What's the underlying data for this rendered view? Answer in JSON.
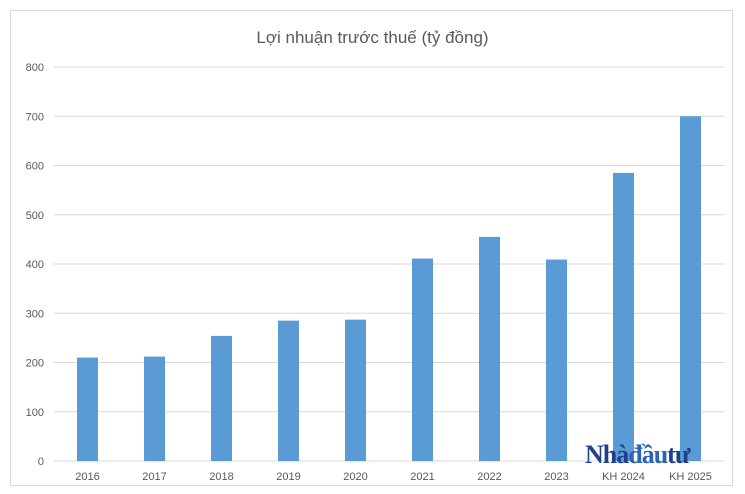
{
  "watermark": {
    "part1": "Nhà",
    "part2": "đầu",
    "part3": "tư"
  },
  "chart_data": {
    "type": "bar",
    "title": "Lợi nhuận trước thuế  (tỷ đồng)",
    "xlabel": "",
    "ylabel": "",
    "categories": [
      "2016",
      "2017",
      "2018",
      "2019",
      "2020",
      "2021",
      "2022",
      "2023",
      "KH 2024",
      "KH 2025"
    ],
    "values": [
      210,
      212,
      254,
      285,
      287,
      411,
      455,
      409,
      585,
      700
    ],
    "ylim": [
      0,
      800
    ],
    "yticks": [
      0,
      100,
      200,
      300,
      400,
      500,
      600,
      700,
      800
    ],
    "grid": true,
    "legend": "none",
    "bar_color": "#5b9bd5",
    "grid_color": "#d9d9d9"
  }
}
